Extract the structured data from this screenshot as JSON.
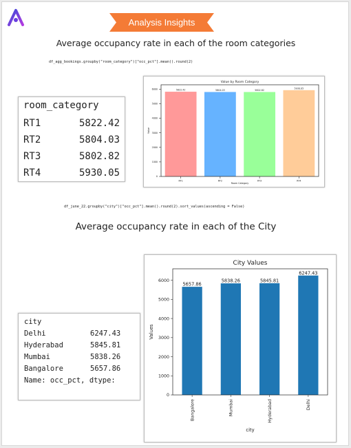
{
  "badge": {
    "label": "Analysis Insights",
    "color": "#f47b36"
  },
  "section1": {
    "heading": "Average occupancy rate  in  each of the room categories",
    "code": "df_agg_bookings.groupby(\"room_category\")[\"occ_pct\"].mean().round(2)",
    "table": {
      "header": "room_category",
      "rows": [
        {
          "label": "RT1",
          "value": "5822.42"
        },
        {
          "label": "RT2",
          "value": "5804.03"
        },
        {
          "label": "RT3",
          "value": "5802.82"
        },
        {
          "label": "RT4",
          "value": "5930.05"
        }
      ]
    }
  },
  "section2": {
    "code": "df_june_22.groupby(\"city\")[\"occ_pct\"].mean().round(2).sort_values(ascending = False)",
    "heading": "Average occupancy rate  in  each of the City",
    "table": {
      "header": "city",
      "rows": [
        {
          "label": "Delhi",
          "value": "6247.43"
        },
        {
          "label": "Hyderabad",
          "value": "5845.81"
        },
        {
          "label": "Mumbai",
          "value": "5838.26"
        },
        {
          "label": "Bangalore",
          "value": "5657.86"
        }
      ],
      "footer": "Name: occ_pct, dtype:"
    }
  },
  "chart_data": [
    {
      "type": "bar",
      "title": "Value by Room Category",
      "xlabel": "Room Category",
      "ylabel": "Value",
      "categories": [
        "RT1",
        "RT2",
        "RT3",
        "RT4"
      ],
      "values": [
        5822.42,
        5804.03,
        5802.82,
        5930.05
      ],
      "data_labels": [
        "5822.42",
        "5804.03",
        "5802.82",
        "5930.05"
      ],
      "colors": [
        "#ff9999",
        "#66b3ff",
        "#99ff99",
        "#ffcc99"
      ],
      "ylim": [
        0,
        6300
      ],
      "yticks": [
        0,
        1000,
        2000,
        3000,
        4000,
        5000,
        6000
      ],
      "grid": false
    },
    {
      "type": "bar",
      "title": "City Values",
      "xlabel": "city",
      "ylabel": "Values",
      "categories": [
        "Bangalore",
        "Mumbai",
        "Hyderabad",
        "Delhi"
      ],
      "values": [
        5657.86,
        5838.26,
        5845.81,
        6247.43
      ],
      "data_labels": [
        "5657.86",
        "5838.26",
        "5845.81",
        "6247.43"
      ],
      "colors": [
        "#1f77b4",
        "#1f77b4",
        "#1f77b4",
        "#1f77b4"
      ],
      "ylim": [
        0,
        6600
      ],
      "yticks": [
        0,
        1000,
        2000,
        3000,
        4000,
        5000,
        6000
      ],
      "grid": false
    }
  ]
}
